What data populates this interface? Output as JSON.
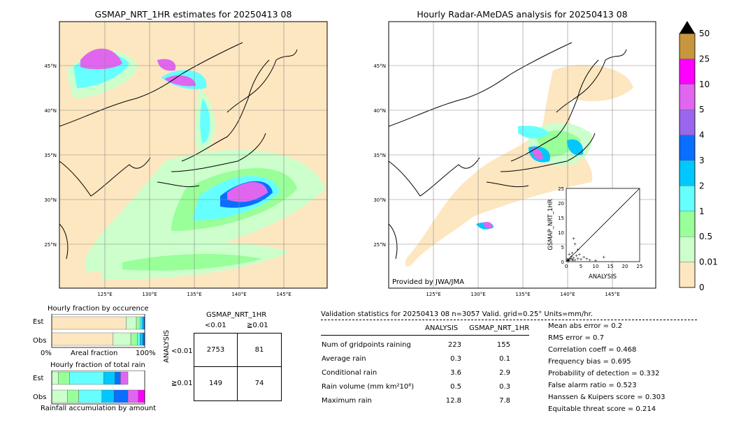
{
  "left_map": {
    "title": "GSMAP_NRT_1HR estimates for 20250413 08",
    "lat_ticks": [
      "45°N",
      "40°N",
      "35°N",
      "30°N",
      "25°N"
    ],
    "lon_ticks": [
      "125°E",
      "130°E",
      "135°E",
      "140°E",
      "145°E"
    ]
  },
  "right_map": {
    "title": "Hourly Radar-AMeDAS analysis for 20250413 08",
    "lat_ticks": [
      "45°N",
      "40°N",
      "35°N",
      "30°N",
      "25°N"
    ],
    "lon_ticks": [
      "125°E",
      "130°E",
      "135°E",
      "140°E",
      "145°E"
    ],
    "credit": "Provided by JWA/JMA"
  },
  "colorbar": {
    "labels": [
      "50",
      "25",
      "10",
      "5",
      "4",
      "3",
      "2",
      "1",
      "0.5",
      "0.01",
      "0"
    ],
    "colors": [
      "#c8963c",
      "#ff00ff",
      "#e066f0",
      "#9a66ee",
      "#0a6eff",
      "#00c8ff",
      "#66ffff",
      "#99ff99",
      "#ccffcc",
      "#fde7c0"
    ],
    "over_color": "#000000"
  },
  "scatter": {
    "xlabel": "ANALYSIS",
    "ylabel": "GSMAP_NRT_1HR",
    "ticks": [
      "0",
      "5",
      "10",
      "15",
      "20",
      "25"
    ]
  },
  "fraction_occurrence": {
    "title": "Hourly fraction by occurence",
    "rows": [
      "Est",
      "Obs"
    ],
    "axis_left": "0%",
    "axis_mid": "Areal fraction",
    "axis_right": "100%"
  },
  "fraction_total": {
    "title": "Hourly fraction of total rain",
    "rows": [
      "Est",
      "Obs"
    ],
    "axis_label": "Rainfall accumulation by amount"
  },
  "contingency": {
    "title": "GSMAP_NRT_1HR",
    "col_labels": [
      "<0.01",
      "≧0.01"
    ],
    "row_axis": "ANALYSIS",
    "row_labels": [
      "<0.01",
      "≧0.01"
    ],
    "cells": [
      [
        "2753",
        "81"
      ],
      [
        "149",
        "74"
      ]
    ]
  },
  "validation": {
    "header": "Validation statistics for 20250413 08  n=3057 Valid. grid=0.25° Units=mm/hr.",
    "col_analysis": "ANALYSIS",
    "col_gsmap": "GSMAP_NRT_1HR",
    "rows": [
      {
        "label": "Num of gridpoints raining",
        "analysis": "223",
        "gsmap": "155"
      },
      {
        "label": "Average rain",
        "analysis": "0.3",
        "gsmap": "0.1"
      },
      {
        "label": "Conditional rain",
        "analysis": "3.6",
        "gsmap": "2.9"
      },
      {
        "label": "Rain volume (mm km²10⁶)",
        "analysis": "0.5",
        "gsmap": "0.3"
      },
      {
        "label": "Maximum rain",
        "analysis": "12.8",
        "gsmap": "7.8"
      }
    ],
    "scores": [
      "Mean abs error =    0.2",
      "RMS error =    0.7",
      "Correlation coeff =  0.468",
      "Frequency bias =  0.695",
      "Probability of detection =  0.332",
      "False alarm ratio =  0.523",
      "Hanssen & Kuipers score =  0.303",
      "Equitable threat score =  0.214"
    ]
  },
  "chart_data": [
    {
      "type": "heatmap",
      "title": "GSMAP_NRT_1HR estimates for 20250413 08",
      "xlabel": "",
      "ylabel": "",
      "x_ticks": [
        "125°E",
        "130°E",
        "135°E",
        "140°E",
        "145°E"
      ],
      "y_ticks": [
        "45°N",
        "40°N",
        "35°N",
        "30°N",
        "25°N"
      ]
    },
    {
      "type": "heatmap",
      "title": "Hourly Radar-AMeDAS analysis for 20250413 08",
      "x_ticks": [
        "125°E",
        "130°E",
        "135°E",
        "140°E",
        "145°E"
      ],
      "y_ticks": [
        "45°N",
        "40°N",
        "35°N",
        "30°N",
        "25°N"
      ]
    },
    {
      "type": "scatter",
      "xlabel": "ANALYSIS",
      "ylabel": "GSMAP_NRT_1HR",
      "xlim": [
        0,
        25
      ],
      "ylim": [
        0,
        25
      ],
      "points": [
        [
          0.5,
          0.3
        ],
        [
          1,
          0.5
        ],
        [
          1.5,
          1
        ],
        [
          2,
          0.8
        ],
        [
          2.5,
          1.2
        ],
        [
          3,
          0.5
        ],
        [
          3.5,
          2
        ],
        [
          1,
          2.5
        ],
        [
          2,
          3
        ],
        [
          4,
          1
        ],
        [
          5,
          0.8
        ],
        [
          6,
          1.5
        ],
        [
          8,
          0.5
        ],
        [
          10,
          0.3
        ],
        [
          12.8,
          1.5
        ],
        [
          3,
          6
        ],
        [
          2.5,
          7.8
        ],
        [
          4,
          4
        ],
        [
          1,
          1
        ],
        [
          0.3,
          0.8
        ],
        [
          0.8,
          0.2
        ],
        [
          1.8,
          1.8
        ],
        [
          2.2,
          0.4
        ],
        [
          4.5,
          2.5
        ],
        [
          7,
          1
        ]
      ]
    },
    {
      "type": "bar",
      "title": "Hourly fraction by occurence",
      "categories": [
        "Est",
        "Obs"
      ],
      "series": [
        {
          "values": [
            0.8,
            0.66
          ]
        },
        {
          "values": [
            0.11,
            0.19
          ]
        },
        {
          "values": [
            0.04,
            0.07
          ]
        },
        {
          "values": [
            0.02,
            0.03
          ]
        },
        {
          "values": [
            0.02,
            0.03
          ]
        },
        {
          "values": [
            0.01,
            0.02
          ]
        }
      ]
    },
    {
      "type": "bar",
      "title": "Hourly fraction of total rain",
      "categories": [
        "Est",
        "Obs"
      ],
      "series": [
        {
          "values": [
            0.07,
            0.17
          ]
        },
        {
          "values": [
            0.12,
            0.12
          ]
        },
        {
          "values": [
            0.37,
            0.25
          ]
        },
        {
          "values": [
            0.12,
            0.13
          ]
        },
        {
          "values": [
            0.06,
            0.15
          ]
        },
        {
          "values": [
            0.08,
            0.11
          ]
        },
        {
          "values": [
            0.0,
            0.07
          ]
        }
      ]
    }
  ]
}
